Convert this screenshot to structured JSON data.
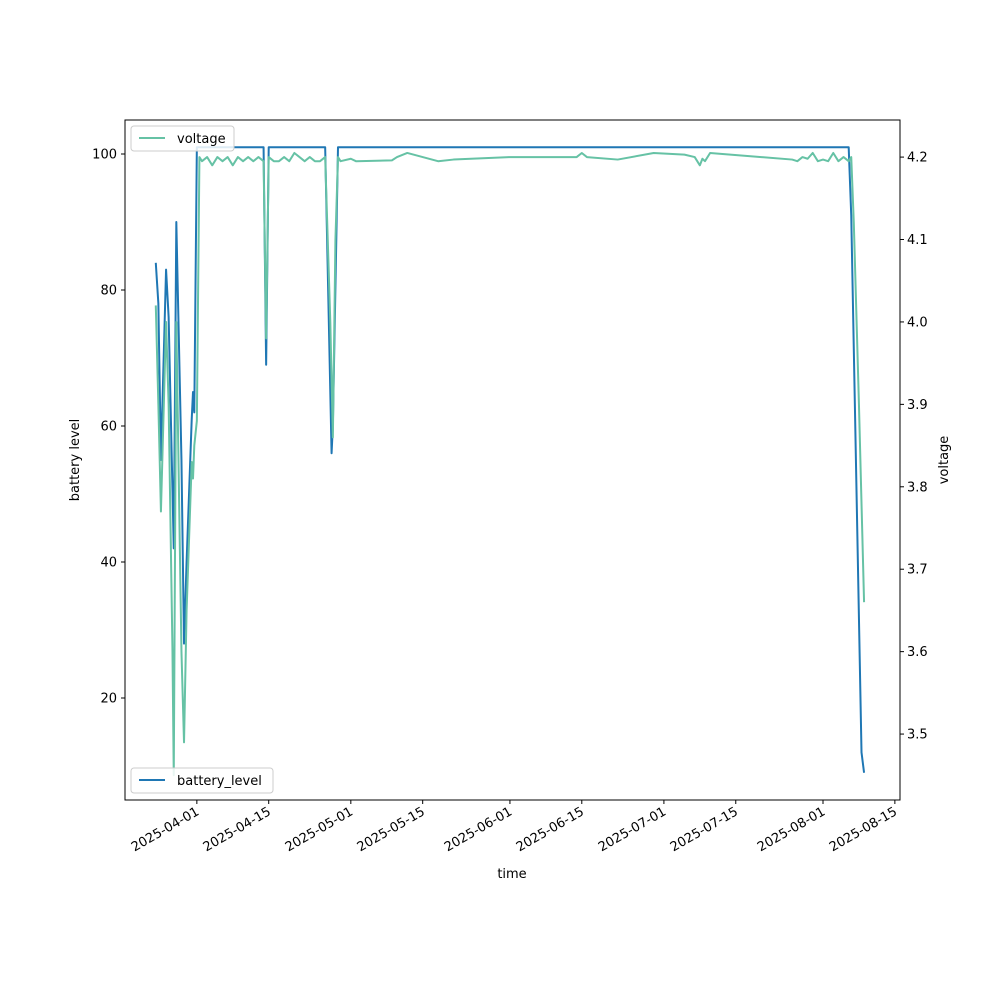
{
  "chart_data": {
    "type": "line",
    "xlabel": "time",
    "ylabel_left": "battery level",
    "ylabel_right": "voltage",
    "x_range": [
      "2025-03-18",
      "2025-08-16"
    ],
    "y_left_range": [
      5,
      105
    ],
    "y_right_range": [
      3.42,
      4.245
    ],
    "x_ticks": [
      "2025-04-01",
      "2025-04-15",
      "2025-05-01",
      "2025-05-15",
      "2025-06-01",
      "2025-06-15",
      "2025-07-01",
      "2025-07-15",
      "2025-08-01",
      "2025-08-15"
    ],
    "y_left_ticks": [
      20,
      40,
      60,
      80,
      100
    ],
    "y_right_ticks": [
      "3.5",
      "3.6",
      "3.7",
      "3.8",
      "3.9",
      "4.0",
      "4.1",
      "4.2"
    ],
    "grid": false,
    "colors": {
      "battery_level": "#1f77b4",
      "voltage": "#66c2a5"
    },
    "series": [
      {
        "name": "battery_level",
        "axis": "left",
        "legend_position": "lower-left",
        "points": [
          [
            "2025-03-24",
            84
          ],
          [
            "2025-03-24 12:00",
            78
          ],
          [
            "2025-03-25",
            55
          ],
          [
            "2025-03-26",
            83
          ],
          [
            "2025-03-26 12:00",
            76
          ],
          [
            "2025-03-27 12:00",
            42
          ],
          [
            "2025-03-28",
            90
          ],
          [
            "2025-03-29",
            55
          ],
          [
            "2025-03-29 12:00",
            28
          ],
          [
            "2025-03-30",
            40
          ],
          [
            "2025-03-31",
            61
          ],
          [
            "2025-03-31 06:00",
            65
          ],
          [
            "2025-03-31 12:00",
            62
          ],
          [
            "2025-04-01",
            101
          ],
          [
            "2025-04-14",
            101
          ],
          [
            "2025-04-14 12:00",
            69
          ],
          [
            "2025-04-15",
            101
          ],
          [
            "2025-04-26",
            101
          ],
          [
            "2025-04-27 06:00",
            56
          ],
          [
            "2025-04-27 12:00",
            60
          ],
          [
            "2025-04-28 12:00",
            101
          ],
          [
            "2025-08-06",
            101
          ],
          [
            "2025-08-06 12:00",
            91
          ],
          [
            "2025-08-08 12:00",
            12
          ],
          [
            "2025-08-09",
            9
          ]
        ]
      },
      {
        "name": "voltage",
        "axis": "right",
        "legend_position": "upper-left",
        "points": [
          [
            "2025-03-24",
            4.02
          ],
          [
            "2025-03-24 12:00",
            3.9
          ],
          [
            "2025-03-25",
            3.77
          ],
          [
            "2025-03-26",
            4.0
          ],
          [
            "2025-03-26 12:00",
            3.9
          ],
          [
            "2025-03-27 06:00",
            3.6
          ],
          [
            "2025-03-27 12:00",
            3.45
          ],
          [
            "2025-03-28",
            4.0
          ],
          [
            "2025-03-28 12:00",
            3.8
          ],
          [
            "2025-03-29",
            3.6
          ],
          [
            "2025-03-29 12:00",
            3.49
          ],
          [
            "2025-03-30",
            3.65
          ],
          [
            "2025-03-31",
            3.83
          ],
          [
            "2025-03-31 06:00",
            3.81
          ],
          [
            "2025-03-31 12:00",
            3.85
          ],
          [
            "2025-04-01",
            3.88
          ],
          [
            "2025-04-01 12:00",
            4.2
          ],
          [
            "2025-04-02",
            4.195
          ],
          [
            "2025-04-03",
            4.2
          ],
          [
            "2025-04-04",
            4.19
          ],
          [
            "2025-04-05",
            4.2
          ],
          [
            "2025-04-06",
            4.195
          ],
          [
            "2025-04-07",
            4.2
          ],
          [
            "2025-04-08",
            4.19
          ],
          [
            "2025-04-09",
            4.2
          ],
          [
            "2025-04-10",
            4.195
          ],
          [
            "2025-04-11",
            4.2
          ],
          [
            "2025-04-12",
            4.195
          ],
          [
            "2025-04-13",
            4.2
          ],
          [
            "2025-04-14",
            4.195
          ],
          [
            "2025-04-14 12:00",
            3.98
          ],
          [
            "2025-04-15",
            4.2
          ],
          [
            "2025-04-16",
            4.195
          ],
          [
            "2025-04-17",
            4.195
          ],
          [
            "2025-04-18",
            4.2
          ],
          [
            "2025-04-19",
            4.195
          ],
          [
            "2025-04-20",
            4.205
          ],
          [
            "2025-04-21",
            4.2
          ],
          [
            "2025-04-22",
            4.195
          ],
          [
            "2025-04-23",
            4.2
          ],
          [
            "2025-04-24",
            4.195
          ],
          [
            "2025-04-25",
            4.195
          ],
          [
            "2025-04-26",
            4.2
          ],
          [
            "2025-04-27",
            4.0
          ],
          [
            "2025-04-27 12:00",
            3.86
          ],
          [
            "2025-04-28",
            4.1
          ],
          [
            "2025-04-28 12:00",
            4.2
          ],
          [
            "2025-04-29",
            4.195
          ],
          [
            "2025-05-01",
            4.198
          ],
          [
            "2025-05-02",
            4.195
          ],
          [
            "2025-05-09",
            4.196
          ],
          [
            "2025-05-10",
            4.2
          ],
          [
            "2025-05-12",
            4.205
          ],
          [
            "2025-05-18",
            4.195
          ],
          [
            "2025-05-21",
            4.197
          ],
          [
            "2025-06-01",
            4.2
          ],
          [
            "2025-06-14",
            4.2
          ],
          [
            "2025-06-15",
            4.205
          ],
          [
            "2025-06-16",
            4.2
          ],
          [
            "2025-06-22",
            4.197
          ],
          [
            "2025-06-29",
            4.205
          ],
          [
            "2025-07-05",
            4.203
          ],
          [
            "2025-07-07",
            4.2
          ],
          [
            "2025-07-08",
            4.19
          ],
          [
            "2025-07-08 12:00",
            4.198
          ],
          [
            "2025-07-09",
            4.195
          ],
          [
            "2025-07-10",
            4.205
          ],
          [
            "2025-07-26",
            4.197
          ],
          [
            "2025-07-27",
            4.195
          ],
          [
            "2025-07-28",
            4.2
          ],
          [
            "2025-07-29",
            4.198
          ],
          [
            "2025-07-30",
            4.205
          ],
          [
            "2025-07-31",
            4.195
          ],
          [
            "2025-08-01",
            4.197
          ],
          [
            "2025-08-02",
            4.195
          ],
          [
            "2025-08-03",
            4.205
          ],
          [
            "2025-08-04",
            4.195
          ],
          [
            "2025-08-05",
            4.2
          ],
          [
            "2025-08-06",
            4.195
          ],
          [
            "2025-08-06 12:00",
            4.2
          ],
          [
            "2025-08-07",
            4.12
          ],
          [
            "2025-08-08",
            3.9
          ],
          [
            "2025-08-09",
            3.66
          ]
        ]
      }
    ]
  }
}
